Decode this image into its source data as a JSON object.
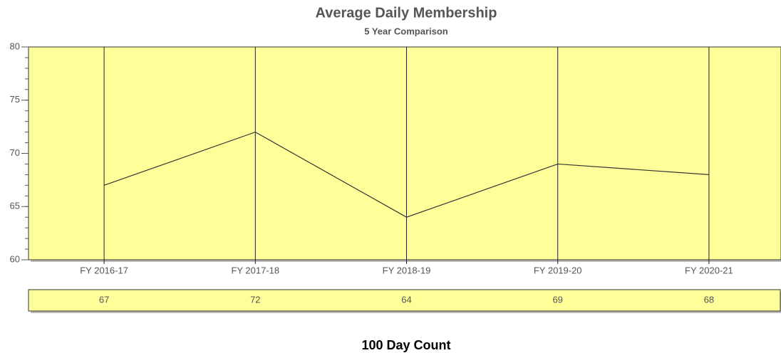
{
  "chart_data": {
    "type": "line",
    "title": "Average Daily Membership",
    "subtitle": "5 Year Comparison",
    "categories": [
      "FY 2016-17",
      "FY 2017-18",
      "FY 2018-19",
      "FY 2019-20",
      "FY 2020-21"
    ],
    "values": [
      67,
      72,
      64,
      69,
      68
    ],
    "color": "#333333",
    "plot_background": "#ffff99",
    "ylim": [
      60,
      80
    ],
    "yticks": [
      60,
      65,
      70,
      75,
      80
    ],
    "minor_tick_step": 1,
    "grid": "x",
    "footnote": "100 Day Count"
  }
}
